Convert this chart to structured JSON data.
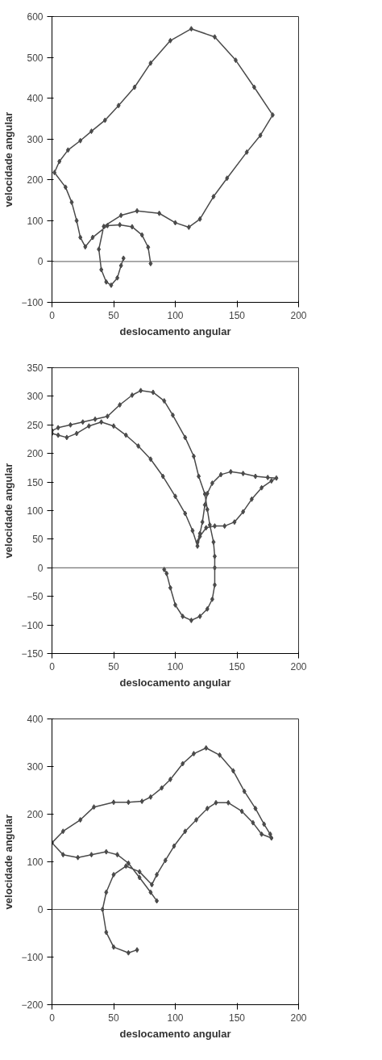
{
  "chart_data": [
    {
      "type": "line",
      "xlabel": "deslocamento angular",
      "ylabel": "velocidade angular",
      "xlim": [
        0,
        200
      ],
      "xticks": [
        0,
        50,
        100,
        150,
        200
      ],
      "ylim": [
        -100,
        600
      ],
      "yticks": [
        -100,
        0,
        100,
        200,
        300,
        400,
        500,
        600
      ],
      "marker": "diamond",
      "grid": false,
      "ref_lines": [
        {
          "axis": "y",
          "value": 0
        }
      ],
      "series": [
        {
          "color": "#4a4a4a",
          "x": [
            80,
            78,
            73,
            65,
            55,
            45,
            33,
            27,
            23,
            20,
            16,
            11,
            2,
            6,
            13,
            23,
            32,
            43,
            54,
            67,
            80,
            96,
            113,
            132,
            149,
            164,
            179,
            169,
            158,
            142,
            131,
            120,
            111,
            100,
            87,
            69,
            56,
            42,
            38,
            40,
            44,
            48,
            53,
            56,
            58
          ],
          "values": [
            -5,
            35,
            65,
            85,
            90,
            88,
            59,
            36,
            59,
            100,
            145,
            182,
            218,
            245,
            273,
            296,
            319,
            346,
            382,
            427,
            486,
            541,
            570,
            550,
            493,
            427,
            359,
            309,
            268,
            204,
            159,
            104,
            84,
            95,
            118,
            124,
            113,
            86,
            30,
            -20,
            -50,
            -58,
            -40,
            -10,
            8
          ]
        }
      ]
    },
    {
      "type": "line",
      "xlabel": "deslocamento angular",
      "ylabel": "velocidade angular",
      "xlim": [
        0,
        200
      ],
      "xticks": [
        0,
        50,
        100,
        150,
        200
      ],
      "ylim": [
        -150,
        350
      ],
      "yticks": [
        -150,
        -100,
        -50,
        0,
        50,
        100,
        150,
        200,
        250,
        300,
        350
      ],
      "marker": "diamond",
      "grid": false,
      "ref_lines": [
        {
          "axis": "y",
          "value": 0
        }
      ],
      "series": [
        {
          "color": "#4a4a4a",
          "x": [
            0,
            5,
            15,
            25,
            35,
            45,
            55,
            65,
            72,
            82,
            91,
            98,
            108,
            115,
            119,
            124,
            126,
            128,
            131,
            132,
            132,
            132,
            130,
            126,
            120,
            113,
            106,
            100,
            96,
            93,
            91
          ],
          "values": [
            240,
            245,
            250,
            255,
            260,
            265,
            285,
            302,
            310,
            307,
            292,
            267,
            228,
            195,
            160,
            129,
            102,
            75,
            45,
            20,
            0,
            -30,
            -55,
            -72,
            -85,
            -92,
            -85,
            -65,
            -35,
            -10,
            -3
          ]
        },
        {
          "color": "#4a4a4a",
          "x": [
            0,
            5,
            12,
            20,
            30,
            40,
            50,
            60,
            70,
            80,
            90,
            100,
            108,
            114,
            118,
            120,
            125,
            132,
            140,
            148,
            155,
            162,
            170,
            178,
            182,
            175,
            165,
            155,
            145,
            137,
            130,
            126,
            124,
            122,
            120,
            118
          ],
          "values": [
            235,
            232,
            228,
            235,
            248,
            255,
            248,
            232,
            213,
            190,
            160,
            125,
            95,
            65,
            38,
            55,
            70,
            73,
            73,
            80,
            98,
            120,
            140,
            152,
            157,
            158,
            160,
            165,
            168,
            163,
            148,
            130,
            110,
            80,
            60,
            45
          ]
        }
      ]
    },
    {
      "type": "line",
      "xlabel": "deslocamento angular",
      "ylabel": "velocidade angular",
      "xlim": [
        0,
        200
      ],
      "xticks": [
        0,
        50,
        100,
        150,
        200
      ],
      "ylim": [
        -200,
        400
      ],
      "yticks": [
        -200,
        -100,
        0,
        100,
        200,
        300,
        400
      ],
      "marker": "diamond",
      "grid": false,
      "ref_lines": [
        {
          "axis": "y",
          "value": 0
        }
      ],
      "series": [
        {
          "color": "#4a4a4a",
          "x": [
            85,
            80,
            71,
            62,
            53,
            44,
            32,
            21,
            9,
            0,
            9,
            23,
            34,
            50,
            62,
            73,
            80,
            89,
            96,
            106,
            115,
            125,
            136,
            147,
            156,
            165,
            172,
            177,
            178,
            170,
            163,
            154,
            143,
            133,
            126,
            117,
            108,
            99,
            92,
            85,
            81,
            71,
            60,
            50,
            44,
            41,
            44,
            50,
            62,
            69
          ],
          "values": [
            18,
            36,
            67,
            97,
            115,
            121,
            115,
            109,
            115,
            140,
            164,
            188,
            215,
            225,
            225,
            227,
            236,
            255,
            273,
            306,
            327,
            339,
            324,
            291,
            248,
            212,
            179,
            158,
            150,
            158,
            182,
            206,
            224,
            224,
            212,
            188,
            164,
            133,
            103,
            73,
            52,
            79,
            91,
            73,
            36,
            0,
            -48,
            -79,
            -91,
            -85
          ]
        }
      ]
    }
  ]
}
